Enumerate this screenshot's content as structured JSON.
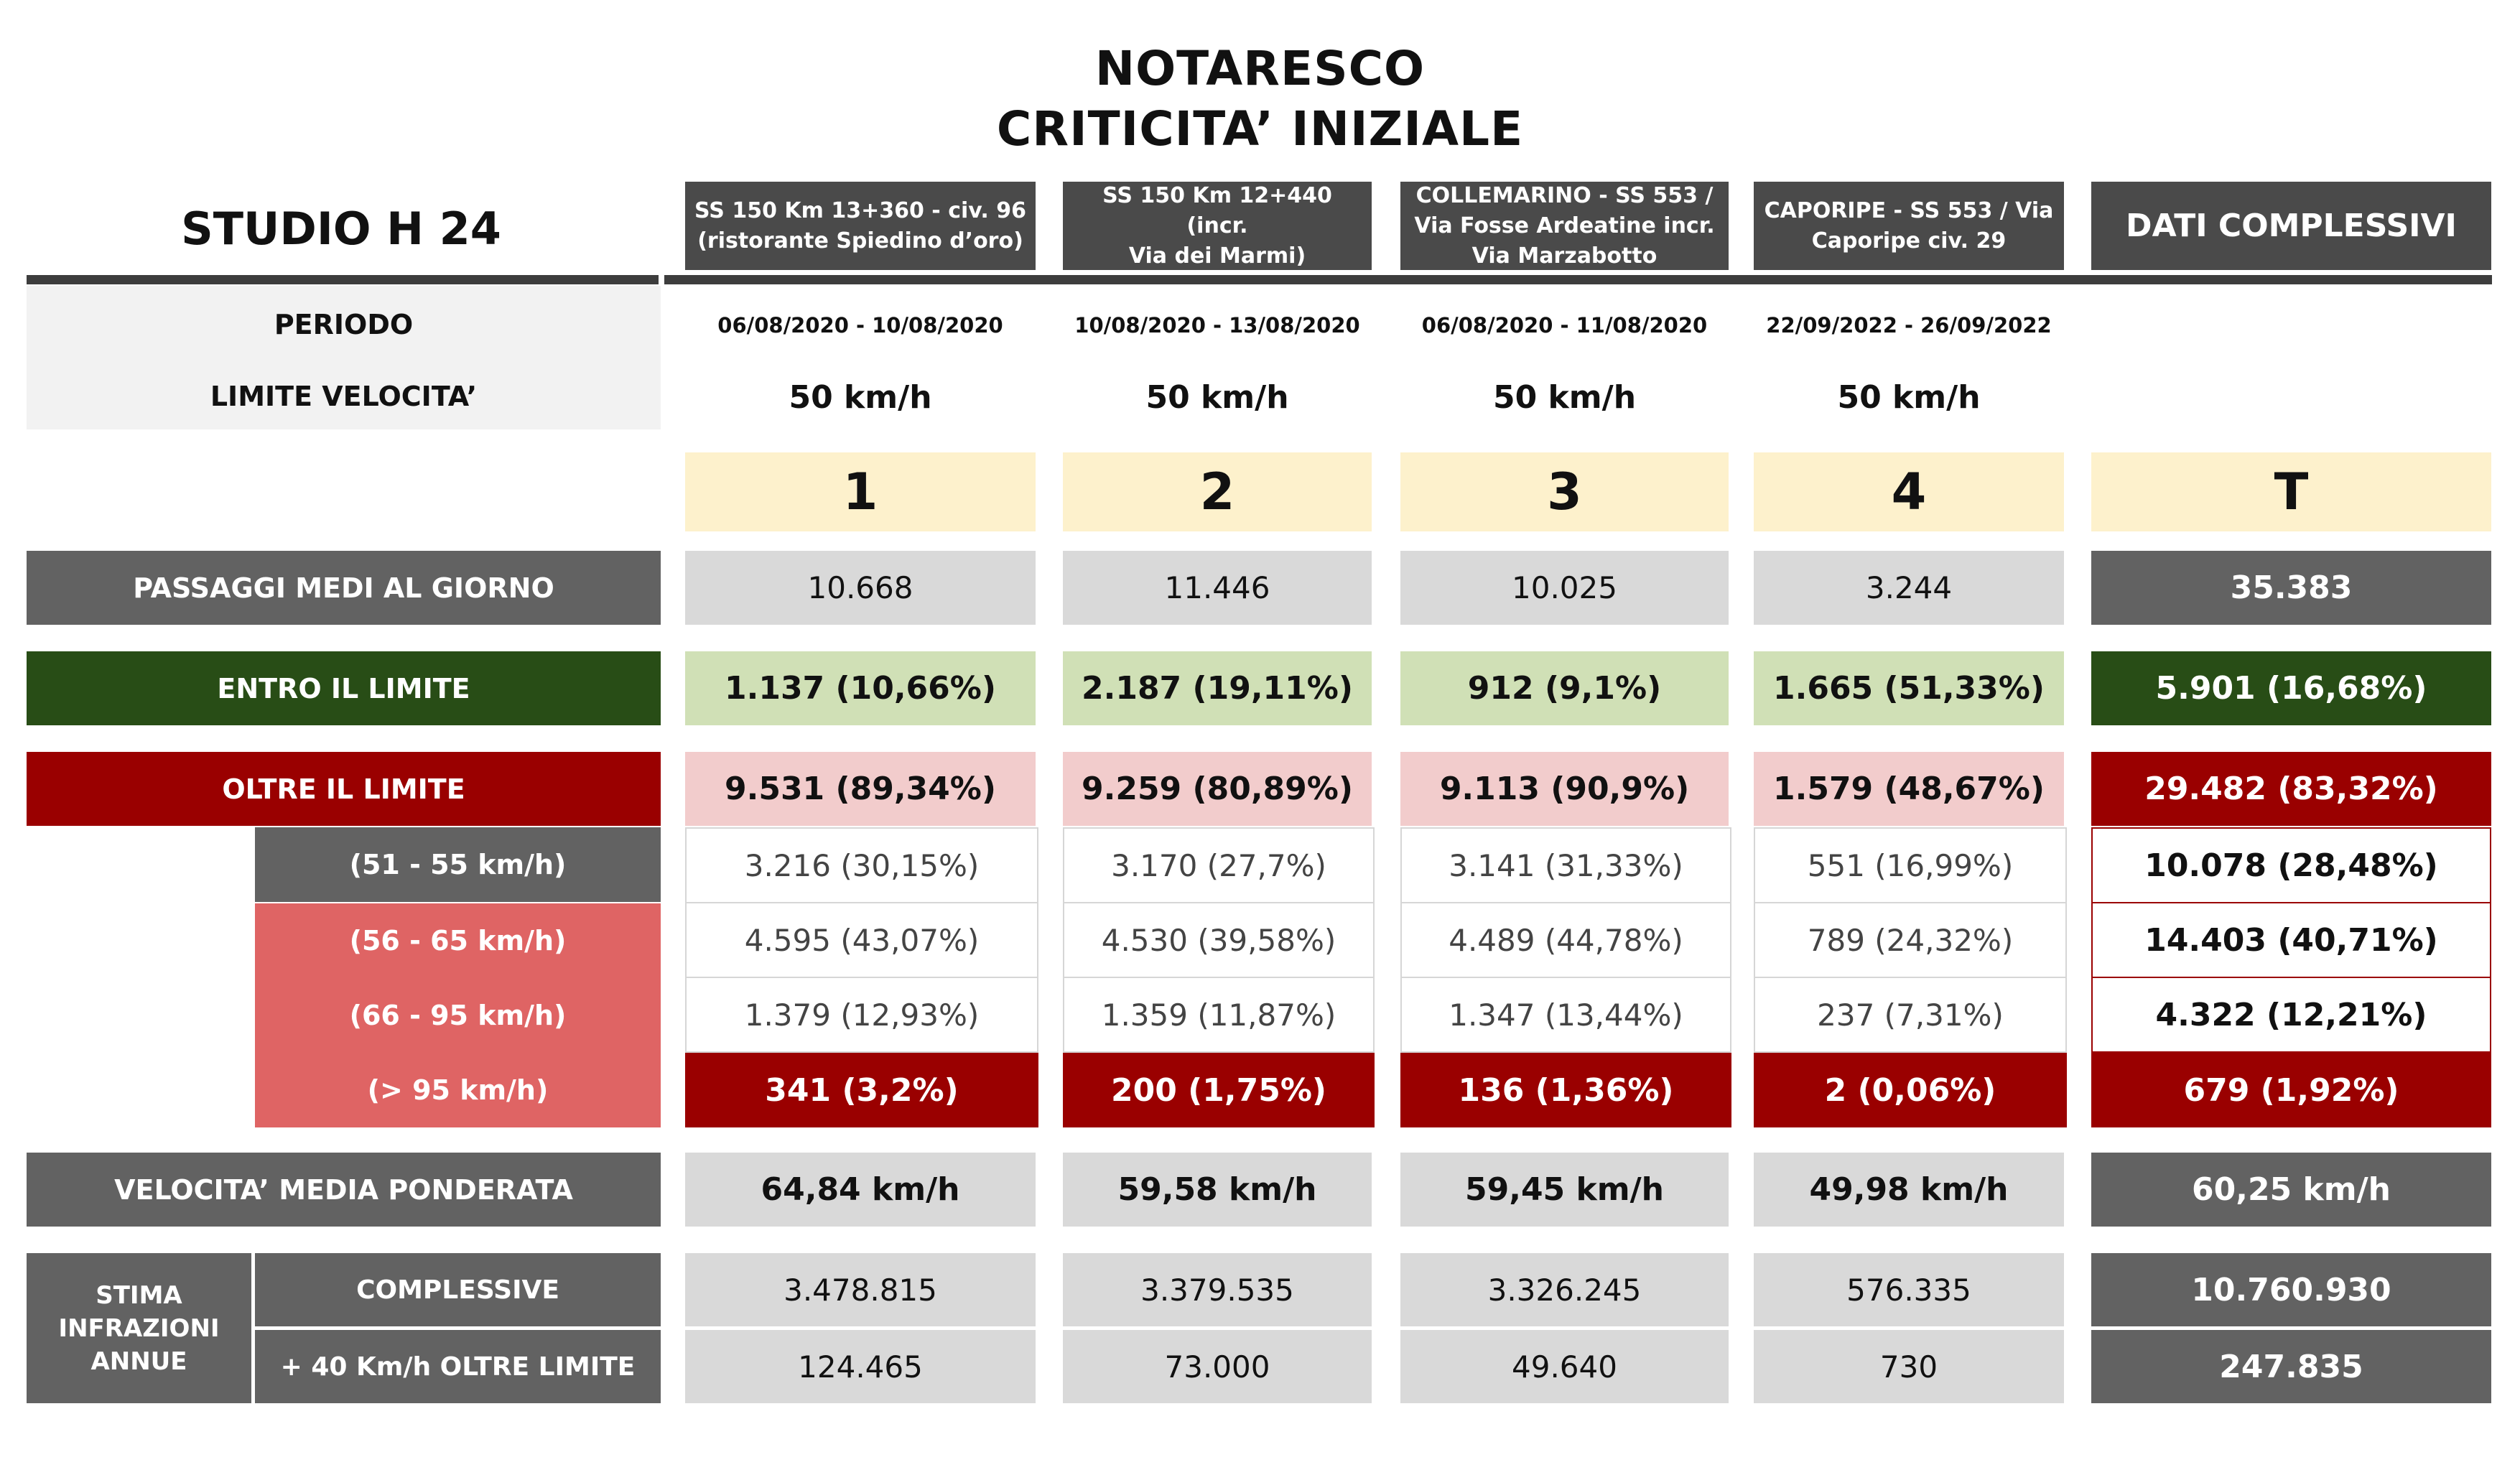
{
  "title": {
    "line1": "NOTARESCO",
    "line2": "CRITICITA’ INIZIALE"
  },
  "studio": "STUDIO H 24",
  "locations": [
    {
      "line1": "SS 150 Km 13+360 - civ. 96",
      "line2": "(ristorante Spiedino d’oro)",
      "line3": "",
      "period": "06/08/2020 - 10/08/2020",
      "limit": "50 km/h",
      "number": "1"
    },
    {
      "line1": "SS 150 Km 12+440 (incr.",
      "line2": "Via dei Marmi)",
      "line3": "",
      "period": "10/08/2020 - 13/08/2020",
      "limit": "50 km/h",
      "number": "2"
    },
    {
      "line1": "COLLEMARINO - SS 553 /",
      "line2": "Via Fosse Ardeatine incr.",
      "line3": "Via Marzabotto",
      "period": "06/08/2020 - 11/08/2020",
      "limit": "50 km/h",
      "number": "3"
    },
    {
      "line1": "CAPORIPE - SS 553 / Via",
      "line2": "Caporipe civ. 29",
      "line3": "",
      "period": "22/09/2022 - 26/09/2022",
      "limit": "50 km/h",
      "number": "4"
    }
  ],
  "totals_header": "DATI COMPLESSIVI",
  "totals_number": "T",
  "labels": {
    "periodo": "PERIODO",
    "limite": "LIMITE VELOCITA’",
    "passaggi": "PASSAGGI MEDI AL GIORNO",
    "entro": "ENTRO IL LIMITE",
    "oltre": "OLTRE IL LIMITE",
    "b1": "(51 - 55 km/h)",
    "b2": "(56 - 65 km/h)",
    "b3": "(66 - 95 km/h)",
    "b4": "(> 95 km/h)",
    "velocita": "VELOCITA’ MEDIA PONDERATA",
    "stima": [
      "STIMA",
      "INFRAZIONI",
      "ANNUE"
    ],
    "complessive": "COMPLESSIVE",
    "oltre40": "+ 40 Km/h OLTRE LIMITE"
  },
  "rows": {
    "passaggi": [
      "10.668",
      "11.446",
      "10.025",
      "3.244",
      "35.383"
    ],
    "entro": [
      "1.137 (10,66%)",
      "2.187 (19,11%)",
      "912 (9,1%)",
      "1.665 (51,33%)",
      "5.901 (16,68%)"
    ],
    "oltre": [
      "9.531 (89,34%)",
      "9.259 (80,89%)",
      "9.113 (90,9%)",
      "1.579 (48,67%)",
      "29.482 (83,32%)"
    ],
    "b1": [
      "3.216 (30,15%)",
      "3.170 (27,7%)",
      "3.141 (31,33%)",
      "551 (16,99%)",
      "10.078 (28,48%)"
    ],
    "b2": [
      "4.595 (43,07%)",
      "4.530 (39,58%)",
      "4.489 (44,78%)",
      "789 (24,32%)",
      "14.403 (40,71%)"
    ],
    "b3": [
      "1.379 (12,93%)",
      "1.359 (11,87%)",
      "1.347 (13,44%)",
      "237 (7,31%)",
      "4.322 (12,21%)"
    ],
    "b4": [
      "341 (3,2%)",
      "200 (1,75%)",
      "136 (1,36%)",
      "2 (0,06%)",
      "679 (1,92%)"
    ],
    "velocita": [
      "64,84 km/h",
      "59,58 km/h",
      "59,45 km/h",
      "49,98 km/h",
      "60,25 km/h"
    ],
    "complessive": [
      "3.478.815",
      "3.379.535",
      "3.326.245",
      "576.335",
      "10.760.930"
    ],
    "oltre40": [
      "124.465",
      "73.000",
      "49.640",
      "730",
      "247.835"
    ]
  }
}
